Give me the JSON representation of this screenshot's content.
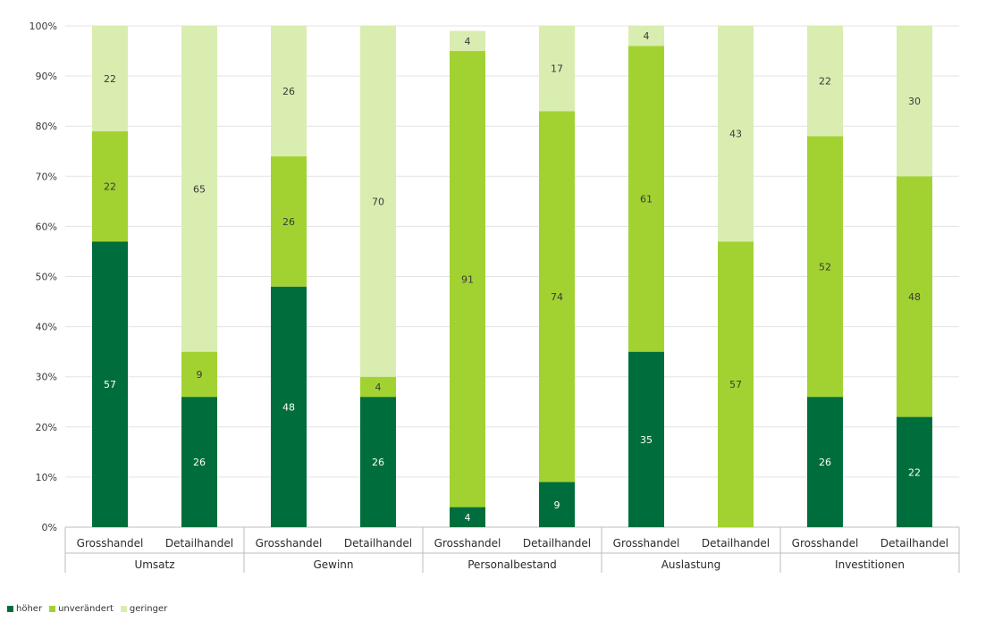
{
  "chart_data": {
    "type": "bar",
    "stacked": true,
    "percent": true,
    "ylim": [
      0,
      100
    ],
    "yticks": [
      "0%",
      "10%",
      "20%",
      "30%",
      "40%",
      "50%",
      "60%",
      "70%",
      "80%",
      "90%",
      "100%"
    ],
    "groups": [
      "Umsatz",
      "Gewinn",
      "Personalbestand",
      "Auslastung",
      "Investitionen"
    ],
    "categories": [
      "Grosshandel",
      "Detailhandel",
      "Grosshandel",
      "Detailhandel",
      "Grosshandel",
      "Detailhandel",
      "Grosshandel",
      "Detailhandel",
      "Grosshandel",
      "Detailhandel"
    ],
    "series": [
      {
        "name": "höher",
        "color": "#006e3c",
        "label_color": "#ffffff",
        "values": [
          57,
          26,
          48,
          26,
          4,
          9,
          35,
          0,
          26,
          22
        ]
      },
      {
        "name": "unverändert",
        "color": "#a2d232",
        "label_color": "#3a3a3a",
        "values": [
          22,
          9,
          26,
          4,
          91,
          74,
          61,
          57,
          52,
          48
        ]
      },
      {
        "name": "geringer",
        "color": "#d9edb0",
        "label_color": "#3a3a3a",
        "values": [
          22,
          65,
          26,
          70,
          4,
          17,
          4,
          43,
          22,
          30
        ]
      }
    ],
    "grid": true,
    "legend_position": "bottom-left"
  }
}
